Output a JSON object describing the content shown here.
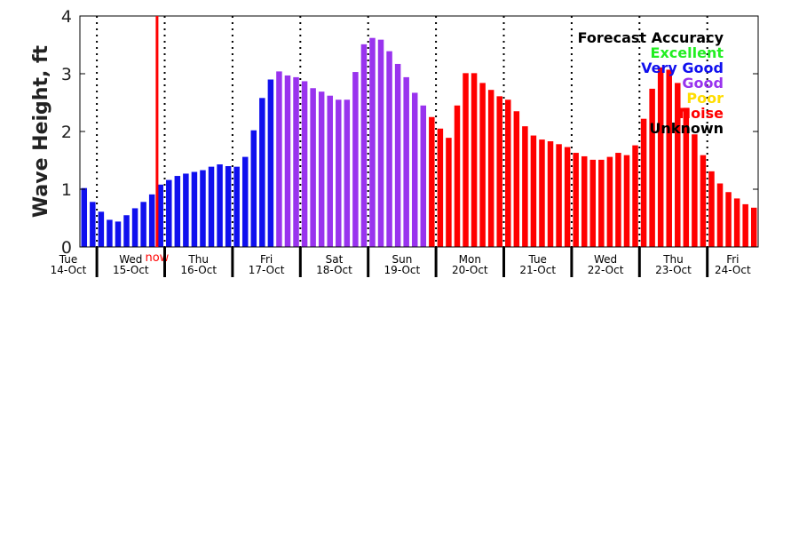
{
  "chart_data": {
    "type": "bar",
    "ylabel": "Wave Height, ft",
    "ylim": [
      0,
      4
    ],
    "yticks": [
      "0",
      "1",
      "2",
      "3",
      "4"
    ],
    "days": [
      {
        "weekday": "Tue",
        "date": "14-Oct"
      },
      {
        "weekday": "Wed",
        "date": "15-Oct"
      },
      {
        "weekday": "Thu",
        "date": "16-Oct"
      },
      {
        "weekday": "Fri",
        "date": "17-Oct"
      },
      {
        "weekday": "Sat",
        "date": "18-Oct"
      },
      {
        "weekday": "Sun",
        "date": "19-Oct"
      },
      {
        "weekday": "Mon",
        "date": "20-Oct"
      },
      {
        "weekday": "Tue",
        "date": "21-Oct"
      },
      {
        "weekday": "Wed",
        "date": "22-Oct"
      },
      {
        "weekday": "Thu",
        "date": "23-Oct"
      },
      {
        "weekday": "Fri",
        "date": "24-Oct"
      }
    ],
    "now_label": "now",
    "legend": {
      "title": "Forecast Accuracy",
      "items": [
        {
          "label": "Excellent",
          "color": "#22ee22"
        },
        {
          "label": "Very Good",
          "color": "#1010ee"
        },
        {
          "label": "Good",
          "color": "#9933ee"
        },
        {
          "label": "Poor",
          "color": "#ffdd00"
        },
        {
          "label": "Noise",
          "color": "#ff0000"
        },
        {
          "label": "Unknown",
          "color": "#000000"
        }
      ]
    },
    "values": [
      1.02,
      0.78,
      0.61,
      0.47,
      0.44,
      0.55,
      0.67,
      0.78,
      0.91,
      1.08,
      1.16,
      1.23,
      1.27,
      1.3,
      1.33,
      1.39,
      1.43,
      1.4,
      1.39,
      1.56,
      2.02,
      2.58,
      2.9,
      3.04,
      2.97,
      2.94,
      2.87,
      2.75,
      2.69,
      2.62,
      2.55,
      2.55,
      3.03,
      3.51,
      3.62,
      3.59,
      3.39,
      3.17,
      2.94,
      2.67,
      2.45,
      2.25,
      2.05,
      1.89,
      2.45,
      3.01,
      3.01,
      2.84,
      2.72,
      2.61,
      2.55,
      2.35,
      2.09,
      1.93,
      1.86,
      1.83,
      1.78,
      1.73,
      1.63,
      1.57,
      1.51,
      1.51,
      1.56,
      1.63,
      1.59,
      1.76,
      2.22,
      2.74,
      3.11,
      3.07,
      2.84,
      2.41,
      1.95,
      1.59,
      1.31,
      1.1,
      0.95,
      0.84,
      0.74,
      0.68
    ],
    "accuracy": [
      "Very Good",
      "Very Good",
      "Very Good",
      "Very Good",
      "Very Good",
      "Very Good",
      "Very Good",
      "Very Good",
      "Very Good",
      "Very Good",
      "Very Good",
      "Very Good",
      "Very Good",
      "Very Good",
      "Very Good",
      "Very Good",
      "Very Good",
      "Very Good",
      "Very Good",
      "Very Good",
      "Very Good",
      "Very Good",
      "Very Good",
      "Good",
      "Good",
      "Good",
      "Good",
      "Good",
      "Good",
      "Good",
      "Good",
      "Good",
      "Good",
      "Good",
      "Good",
      "Good",
      "Good",
      "Good",
      "Good",
      "Good",
      "Good",
      "Noise",
      "Noise",
      "Noise",
      "Noise",
      "Noise",
      "Noise",
      "Noise",
      "Noise",
      "Noise",
      "Noise",
      "Noise",
      "Noise",
      "Noise",
      "Noise",
      "Noise",
      "Noise",
      "Noise",
      "Noise",
      "Noise",
      "Noise",
      "Noise",
      "Noise",
      "Noise",
      "Noise",
      "Noise",
      "Noise",
      "Noise",
      "Noise",
      "Noise",
      "Noise",
      "Noise",
      "Noise",
      "Noise",
      "Noise",
      "Noise",
      "Noise",
      "Noise",
      "Noise",
      "Noise"
    ]
  }
}
